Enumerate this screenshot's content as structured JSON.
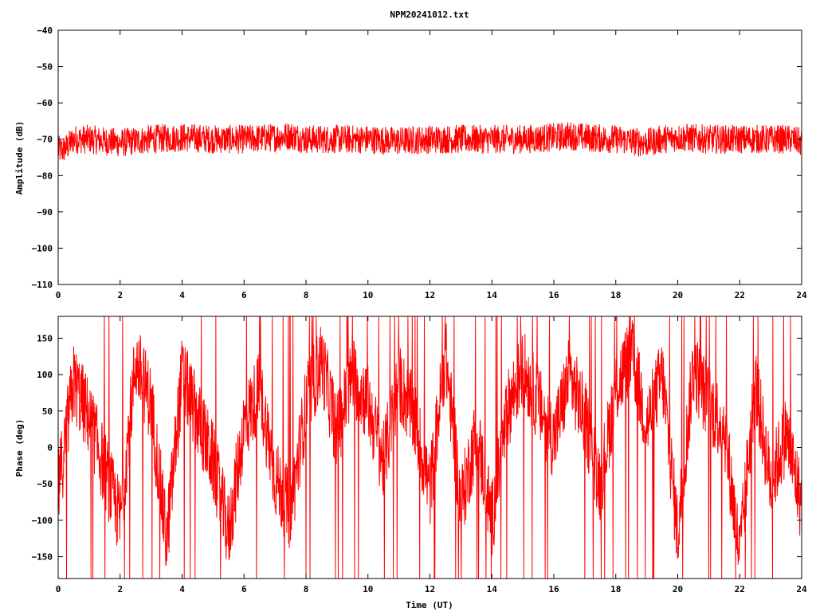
{
  "title": "NPM20241012.txt",
  "colors": {
    "series": "#ff0000",
    "frame": "#000000",
    "background": "#ffffff"
  },
  "chart_data": [
    {
      "type": "line",
      "ylabel": "Amplitude (dB)",
      "xlabel": "",
      "xlim": [
        0,
        24
      ],
      "ylim": [
        -110,
        -40
      ],
      "xticks": [
        0,
        2,
        4,
        6,
        8,
        10,
        12,
        14,
        16,
        18,
        20,
        22,
        24
      ],
      "yticks": [
        -40,
        -50,
        -60,
        -70,
        -80,
        -90,
        -100,
        -110
      ],
      "grid": false,
      "series": [
        {
          "x": [
            0,
            0.15,
            0.3,
            0.5,
            1,
            2,
            3,
            4,
            5,
            6,
            7,
            7.5,
            8,
            9,
            10,
            11,
            12,
            13,
            14,
            15,
            16,
            16.5,
            17,
            18,
            19,
            19.5,
            20,
            21,
            22,
            23,
            23.7,
            24
          ],
          "mean": [
            -73,
            -73,
            -72,
            -70,
            -70,
            -71,
            -70,
            -69.5,
            -70,
            -70,
            -69.5,
            -69,
            -70,
            -70,
            -70,
            -70.5,
            -70,
            -70,
            -70,
            -70,
            -69.5,
            -69,
            -69.5,
            -70,
            -71,
            -70,
            -69.5,
            -70,
            -70,
            -70,
            -70,
            -71
          ],
          "spread": 4
        }
      ]
    },
    {
      "type": "line",
      "ylabel": "Phase (deg)",
      "xlabel": "Time (UT)",
      "xlim": [
        0,
        24
      ],
      "ylim": [
        -180,
        180
      ],
      "xticks": [
        0,
        2,
        4,
        6,
        8,
        10,
        12,
        14,
        16,
        18,
        20,
        22,
        24
      ],
      "yticks": [
        150,
        100,
        50,
        0,
        -50,
        -100,
        -150
      ],
      "grid": false,
      "series": [
        {
          "x": [
            0,
            0.5,
            1,
            1.5,
            2,
            2.5,
            3,
            3.5,
            4,
            4.5,
            5,
            5.5,
            6,
            6.5,
            7,
            7.5,
            8,
            8.5,
            9,
            9.5,
            10,
            10.5,
            11,
            11.5,
            12,
            12.5,
            13,
            13.5,
            14,
            14.5,
            15,
            15.5,
            16,
            16.5,
            17,
            17.5,
            18,
            18.5,
            19,
            19.5,
            20,
            20.5,
            21,
            21.5,
            22,
            22.5,
            23,
            23.5,
            24
          ],
          "trend": [
            -60,
            90,
            40,
            -30,
            -100,
            120,
            60,
            -130,
            100,
            40,
            -20,
            -120,
            30,
            80,
            -40,
            -90,
            60,
            120,
            20,
            100,
            60,
            -20,
            90,
            40,
            -60,
            130,
            -80,
            20,
            -100,
            50,
            110,
            60,
            10,
            100,
            40,
            -50,
            80,
            130,
            30,
            100,
            -120,
            110,
            60,
            30,
            -150,
            90,
            -50,
            20,
            -80
          ]
        }
      ]
    }
  ]
}
